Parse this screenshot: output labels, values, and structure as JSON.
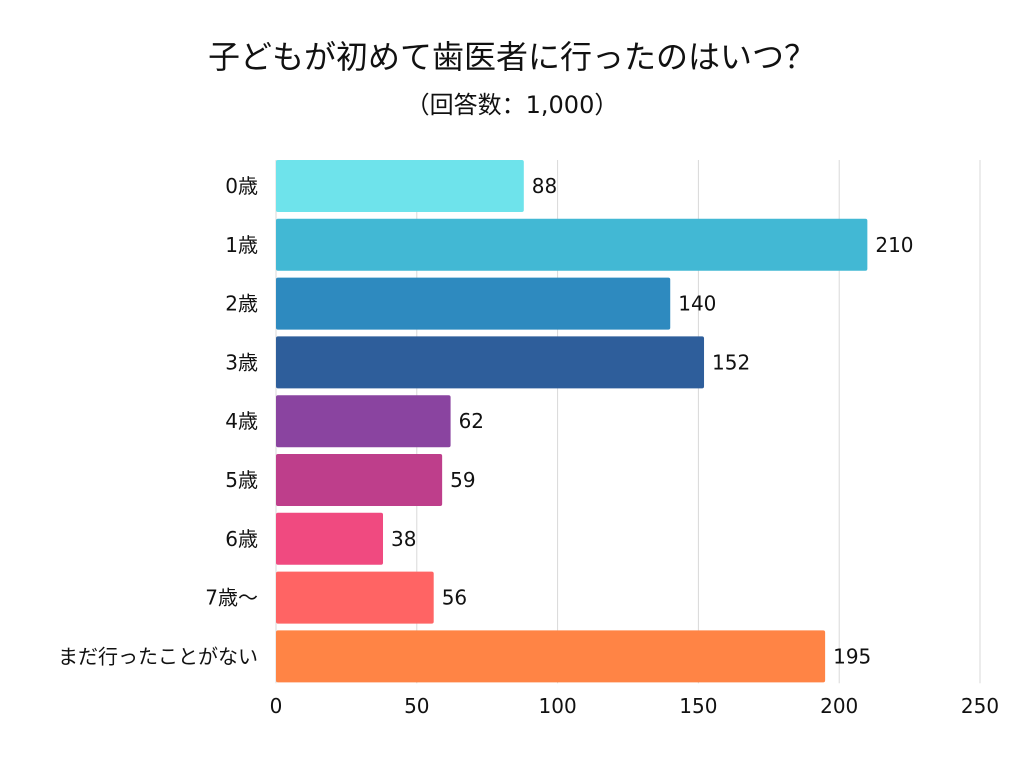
{
  "chart_data": {
    "type": "bar",
    "orientation": "horizontal",
    "title": "子どもが初めて歯医者に行ったのはいつ？",
    "subtitle": "（回答数：1,000）",
    "xlabel": "",
    "ylabel": "",
    "categories": [
      "0歳",
      "1歳",
      "2歳",
      "3歳",
      "4歳",
      "5歳",
      "6歳",
      "7歳〜",
      "まだ行ったことがない"
    ],
    "values": [
      88,
      210,
      140,
      152,
      62,
      59,
      38,
      56,
      195
    ],
    "value_labels": [
      "88",
      "210",
      "140",
      "152",
      "62",
      "59",
      "38",
      "56",
      "195"
    ],
    "xlim": [
      0,
      250
    ],
    "x_ticks": [
      0,
      50,
      100,
      150,
      200,
      250
    ],
    "x_tick_labels": [
      "0",
      "50",
      "100",
      "150",
      "200",
      "250"
    ],
    "grid": "vertical",
    "colors": [
      "#6EE3EB",
      "#42B8D4",
      "#2E8ABF",
      "#2E5E9B",
      "#8A44A0",
      "#BE3E8B",
      "#F04A80",
      "#FF6464",
      "#FF8445"
    ]
  }
}
